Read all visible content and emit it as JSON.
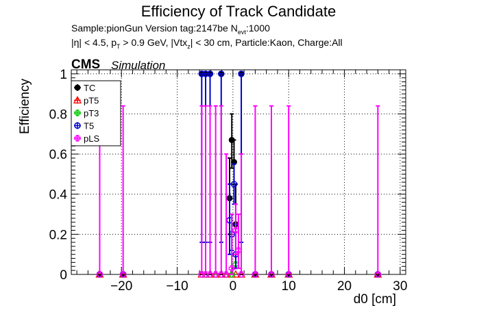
{
  "title": "Efficiency of Track Candidate",
  "subtitle_line1": "Sample:pionGun   Version tag:2147be  N",
  "subtitle_nevt_sub": "evt",
  "subtitle_nevt_val": ":1000",
  "subtitle_line2": "|η| < 4.5, p",
  "subtitle_pt_sub": "T",
  "subtitle_pt_rest": " > 0.9 GeV, |Vtx",
  "subtitle_vtx_sub": "z",
  "subtitle_vtx_rest": "| < 30 cm, Particle:Kaon, Charge:All",
  "cms_label": "CMS",
  "simulation_label": "Simulation",
  "chart_data": {
    "type": "scatter",
    "xlabel": "d0 [cm]",
    "ylabel": "Efficiency",
    "xlim": [
      -29,
      31
    ],
    "ylim": [
      0,
      1.02
    ],
    "grid": true,
    "legend_position": "top-left",
    "x_ticks": [
      -20,
      -10,
      0,
      10,
      20,
      30
    ],
    "x_tick_labels": [
      "−20",
      "−10",
      "0",
      "10",
      "20",
      "30"
    ],
    "y_ticks": [
      0,
      0.2,
      0.4,
      0.6,
      0.8,
      1
    ],
    "y_tick_labels": [
      "0",
      "0.2",
      "0.4",
      "0.6",
      "0.8",
      "1"
    ],
    "series": [
      {
        "name": "TC",
        "color": "#000000",
        "marker": "filled-circle",
        "points": [
          {
            "x": -23.9,
            "y": 0,
            "lo": 0,
            "hi": 0
          },
          {
            "x": -19.7,
            "y": 0,
            "lo": 0,
            "hi": 0
          },
          {
            "x": -5.6,
            "y": 1.0,
            "lo": 0,
            "hi": 0
          },
          {
            "x": -4.9,
            "y": 1.0,
            "lo": 0,
            "hi": 0
          },
          {
            "x": -4.1,
            "y": 1.0,
            "lo": 0,
            "hi": 0
          },
          {
            "x": -2.1,
            "y": 1.0,
            "lo": 0,
            "hi": 0
          },
          {
            "x": -0.6,
            "y": 0.38,
            "lo": 0.2,
            "hi": 0.58
          },
          {
            "x": -0.2,
            "y": 0.67,
            "lo": 0.53,
            "hi": 0.8
          },
          {
            "x": 0.2,
            "y": 0.56,
            "lo": 0.45,
            "hi": 0.67
          },
          {
            "x": 0.5,
            "y": 0.25,
            "lo": 0.1,
            "hi": 0.45
          },
          {
            "x": 1.5,
            "y": 1.0,
            "lo": 0,
            "hi": 0
          },
          {
            "x": 4.0,
            "y": 0,
            "lo": 0,
            "hi": 0
          },
          {
            "x": 6.9,
            "y": 0,
            "lo": 0,
            "hi": 0
          },
          {
            "x": 10.0,
            "y": 0,
            "lo": 0,
            "hi": 0
          },
          {
            "x": 26.0,
            "y": 0,
            "lo": 0,
            "hi": 0
          }
        ]
      },
      {
        "name": "pT5",
        "color": "#ff0000",
        "marker": "open-triangle",
        "points": [
          {
            "x": -23.9,
            "y": 0
          },
          {
            "x": -19.7,
            "y": 0
          },
          {
            "x": -5.6,
            "y": 0
          },
          {
            "x": -4.9,
            "y": 0
          },
          {
            "x": -4.1,
            "y": 0
          },
          {
            "x": -3.1,
            "y": 0
          },
          {
            "x": -2.1,
            "y": 0
          },
          {
            "x": -1.2,
            "y": 0
          },
          {
            "x": -0.2,
            "y": 0
          },
          {
            "x": 0.5,
            "y": 0
          },
          {
            "x": 1.5,
            "y": 0
          },
          {
            "x": 4.0,
            "y": 0
          },
          {
            "x": 6.9,
            "y": 0
          },
          {
            "x": 10.0,
            "y": 0
          },
          {
            "x": 26.0,
            "y": 0
          }
        ]
      },
      {
        "name": "pT3",
        "color": "#00cc00",
        "marker": "open-cross",
        "points": [
          {
            "x": -23.9,
            "y": 0
          },
          {
            "x": -19.7,
            "y": 0
          },
          {
            "x": -5.6,
            "y": 0
          },
          {
            "x": -4.9,
            "y": 0
          },
          {
            "x": -4.1,
            "y": 0
          },
          {
            "x": -3.1,
            "y": 0
          },
          {
            "x": -2.1,
            "y": 0
          },
          {
            "x": -1.2,
            "y": 0
          },
          {
            "x": -0.2,
            "y": 0
          },
          {
            "x": 0.5,
            "y": 0.05
          },
          {
            "x": 1.5,
            "y": 0
          },
          {
            "x": 4.0,
            "y": 0
          },
          {
            "x": 6.9,
            "y": 0
          },
          {
            "x": 10.0,
            "y": 0
          },
          {
            "x": 26.0,
            "y": 0
          }
        ]
      },
      {
        "name": "T5",
        "color": "#0000cc",
        "marker": "open-circle",
        "points": [
          {
            "x": -23.9,
            "y": 0,
            "lo": 0,
            "hi": 0
          },
          {
            "x": -19.7,
            "y": 0,
            "lo": 0,
            "hi": 0
          },
          {
            "x": -5.6,
            "y": 1.0,
            "lo": 0.16,
            "hi": 1.0
          },
          {
            "x": -4.9,
            "y": 1.0,
            "lo": 0.16,
            "hi": 1.0
          },
          {
            "x": -4.1,
            "y": 1.0,
            "lo": 0.16,
            "hi": 1.0
          },
          {
            "x": -2.1,
            "y": 1.0,
            "lo": 0.16,
            "hi": 1.0
          },
          {
            "x": -0.6,
            "y": 0.27,
            "lo": 0.1,
            "hi": 0.45
          },
          {
            "x": -0.2,
            "y": 0.2,
            "lo": 0.12,
            "hi": 0.3
          },
          {
            "x": 0.2,
            "y": 0.45,
            "lo": 0.35,
            "hi": 0.55
          },
          {
            "x": 0.5,
            "y": 0.1,
            "lo": 0.03,
            "hi": 0.25
          },
          {
            "x": 1.5,
            "y": 1.0,
            "lo": 0.16,
            "hi": 1.0
          },
          {
            "x": 4.0,
            "y": 0,
            "lo": 0,
            "hi": 0
          },
          {
            "x": 6.9,
            "y": 0,
            "lo": 0,
            "hi": 0
          },
          {
            "x": 10.0,
            "y": 0,
            "lo": 0,
            "hi": 0
          },
          {
            "x": 26.0,
            "y": 0,
            "lo": 0,
            "hi": 0
          }
        ]
      },
      {
        "name": "pLS",
        "color": "#ff00ff",
        "marker": "open-cross",
        "points": [
          {
            "x": -23.9,
            "y": 0,
            "lo": 0,
            "hi": 0.84
          },
          {
            "x": -19.7,
            "y": 0,
            "lo": 0,
            "hi": 0.84
          },
          {
            "x": -5.6,
            "y": 0,
            "lo": 0,
            "hi": 0.84
          },
          {
            "x": -4.9,
            "y": 0,
            "lo": 0,
            "hi": 0.84
          },
          {
            "x": -4.1,
            "y": 0,
            "lo": 0,
            "hi": 0.84
          },
          {
            "x": -3.1,
            "y": 0,
            "lo": 0,
            "hi": 0.84
          },
          {
            "x": -2.1,
            "y": 0,
            "lo": 0,
            "hi": 0.84
          },
          {
            "x": -1.2,
            "y": 0,
            "lo": 0,
            "hi": 0.6
          },
          {
            "x": -0.2,
            "y": 0.03,
            "lo": 0,
            "hi": 0.3
          },
          {
            "x": 0.5,
            "y": 0.22,
            "lo": 0.1,
            "hi": 0.35
          },
          {
            "x": 1.0,
            "y": 0.12,
            "lo": 0.03,
            "hi": 0.3
          },
          {
            "x": 1.5,
            "y": 0,
            "lo": 0,
            "hi": 0.6
          },
          {
            "x": 4.0,
            "y": 0,
            "lo": 0,
            "hi": 0.84
          },
          {
            "x": 6.9,
            "y": 0,
            "lo": 0,
            "hi": 0.84
          },
          {
            "x": 10.0,
            "y": 0,
            "lo": 0,
            "hi": 0.84
          },
          {
            "x": 26.0,
            "y": 0,
            "lo": 0,
            "hi": 0.84
          }
        ]
      }
    ]
  }
}
